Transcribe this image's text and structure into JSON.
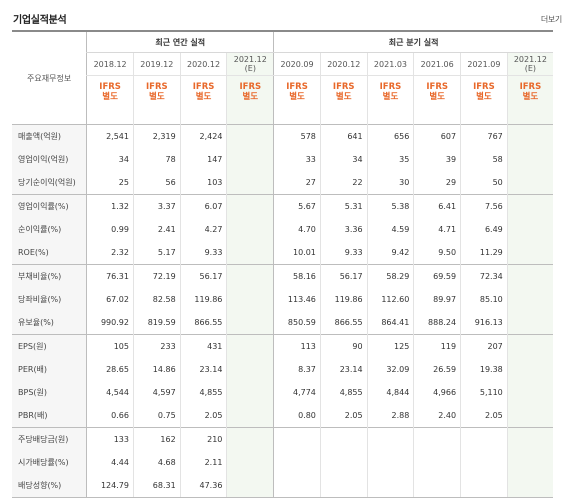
{
  "header": {
    "title": "기업실적분석",
    "more_label": "더보기"
  },
  "table": {
    "row_header_label": "주요재무정보",
    "annual_label": "최근 연간 실적",
    "quarter_label": "최근 분기 실적",
    "annual_periods": [
      "2018.12",
      "2019.12",
      "2020.12",
      "2021.12"
    ],
    "annual_est_mark": "(E)",
    "quarter_periods": [
      "2020.09",
      "2020.12",
      "2021.03",
      "2021.06",
      "2021.09",
      "2021.12"
    ],
    "quarter_est_mark": "(E)",
    "std_top": "IFRS",
    "std_bottom": "별도",
    "rows": [
      {
        "label": "매출액(억원)",
        "annual": [
          "2,541",
          "2,319",
          "2,424",
          ""
        ],
        "quarter": [
          "578",
          "641",
          "656",
          "607",
          "767",
          ""
        ]
      },
      {
        "label": "영업이익(억원)",
        "annual": [
          "34",
          "78",
          "147",
          ""
        ],
        "quarter": [
          "33",
          "34",
          "35",
          "39",
          "58",
          ""
        ]
      },
      {
        "label": "당기순이익(억원)",
        "annual": [
          "25",
          "56",
          "103",
          ""
        ],
        "quarter": [
          "27",
          "22",
          "30",
          "29",
          "50",
          ""
        ]
      },
      {
        "label": "영업이익률(%)",
        "annual": [
          "1.32",
          "3.37",
          "6.07",
          ""
        ],
        "quarter": [
          "5.67",
          "5.31",
          "5.38",
          "6.41",
          "7.56",
          ""
        ]
      },
      {
        "label": "순이익률(%)",
        "annual": [
          "0.99",
          "2.41",
          "4.27",
          ""
        ],
        "quarter": [
          "4.70",
          "3.36",
          "4.59",
          "4.71",
          "6.49",
          ""
        ]
      },
      {
        "label": "ROE(%)",
        "annual": [
          "2.32",
          "5.17",
          "9.33",
          ""
        ],
        "quarter": [
          "10.01",
          "9.33",
          "9.42",
          "9.50",
          "11.29",
          ""
        ]
      },
      {
        "label": "부채비율(%)",
        "annual": [
          "76.31",
          "72.19",
          "56.17",
          ""
        ],
        "quarter": [
          "58.16",
          "56.17",
          "58.29",
          "69.59",
          "72.34",
          ""
        ]
      },
      {
        "label": "당좌비율(%)",
        "annual": [
          "67.02",
          "82.58",
          "119.86",
          ""
        ],
        "quarter": [
          "113.46",
          "119.86",
          "112.60",
          "89.97",
          "85.10",
          ""
        ]
      },
      {
        "label": "유보율(%)",
        "annual": [
          "990.92",
          "819.59",
          "866.55",
          ""
        ],
        "quarter": [
          "850.59",
          "866.55",
          "864.41",
          "888.24",
          "916.13",
          ""
        ]
      },
      {
        "label": "EPS(원)",
        "annual": [
          "105",
          "233",
          "431",
          ""
        ],
        "quarter": [
          "113",
          "90",
          "125",
          "119",
          "207",
          ""
        ]
      },
      {
        "label": "PER(배)",
        "annual": [
          "28.65",
          "14.86",
          "23.14",
          ""
        ],
        "quarter": [
          "8.37",
          "23.14",
          "32.09",
          "26.59",
          "19.38",
          ""
        ]
      },
      {
        "label": "BPS(원)",
        "annual": [
          "4,544",
          "4,597",
          "4,855",
          ""
        ],
        "quarter": [
          "4,774",
          "4,855",
          "4,844",
          "4,966",
          "5,110",
          ""
        ]
      },
      {
        "label": "PBR(배)",
        "annual": [
          "0.66",
          "0.75",
          "2.05",
          ""
        ],
        "quarter": [
          "0.80",
          "2.05",
          "2.88",
          "2.40",
          "2.05",
          ""
        ]
      },
      {
        "label": "주당배당금(원)",
        "annual": [
          "133",
          "162",
          "210",
          ""
        ],
        "quarter": [
          "",
          "",
          "",
          "",
          "",
          ""
        ]
      },
      {
        "label": "시가배당률(%)",
        "annual": [
          "4.44",
          "4.68",
          "2.11",
          ""
        ],
        "quarter": [
          "",
          "",
          "",
          "",
          "",
          ""
        ]
      },
      {
        "label": "배당성향(%)",
        "annual": [
          "124.79",
          "68.31",
          "47.36",
          ""
        ],
        "quarter": [
          "",
          "",
          "",
          "",
          "",
          ""
        ]
      }
    ]
  }
}
